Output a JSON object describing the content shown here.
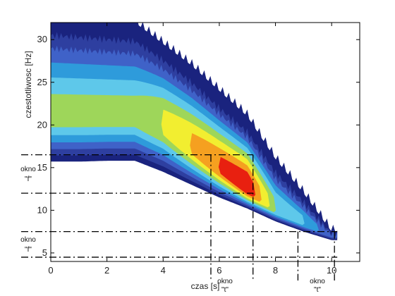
{
  "chart_data": {
    "type": "heatmap",
    "title": "",
    "xlabel": "czas [s]",
    "ylabel": "czestotliwosc [Hz]",
    "xlim": [
      0,
      11
    ],
    "ylim": [
      4,
      32
    ],
    "xticks": [
      0,
      2,
      4,
      6,
      8,
      10
    ],
    "yticks": [
      5,
      10,
      15,
      20,
      25,
      30
    ],
    "grid": false,
    "colorscale": [
      "#1a237e",
      "#2e3fa0",
      "#3f62c8",
      "#2e9bdb",
      "#5ec8ea",
      "#9ed65a",
      "#f2ee30",
      "#f5a020",
      "#e82010",
      "#b00000"
    ],
    "ridge": {
      "time_s": [
        0,
        1,
        2,
        3,
        4,
        5,
        6,
        7,
        8,
        9,
        10
      ],
      "peak_freq_hz": [
        21,
        21,
        21,
        21,
        20,
        17.5,
        15,
        12.5,
        10,
        8.5,
        7
      ],
      "intensity_level": [
        5,
        5,
        5,
        5,
        6,
        7,
        8,
        9,
        5,
        4,
        2
      ],
      "max_level_at": {
        "time_s": 6.6,
        "freq_hz": 13.5
      }
    },
    "upper_edge": {
      "time_s": [
        0,
        1,
        2,
        3,
        4,
        5,
        6,
        7,
        8,
        9,
        10
      ],
      "freq_hz": [
        32,
        32,
        32,
        32,
        29.5,
        27,
        24,
        21,
        16,
        12,
        7.5
      ]
    },
    "lower_edge": {
      "time_s": [
        0,
        1,
        2,
        3,
        4,
        5,
        6,
        7,
        8,
        9,
        10
      ],
      "freq_hz": [
        15.7,
        15.7,
        15.8,
        15.8,
        14.5,
        13,
        11.5,
        10.2,
        8.7,
        7.5,
        6.5
      ]
    },
    "windows": {
      "horizontal": [
        {
          "label": "okno\n\"f\"",
          "freq_from": 12,
          "freq_to": 16.5
        },
        {
          "label": "okno\n\"f\"",
          "freq_from": 4.5,
          "freq_to": 7.5
        }
      ],
      "vertical": [
        {
          "label": "okno\n\"t\"",
          "time_from": 5.7,
          "time_to": 7.2
        },
        {
          "label": "okno\n\"t\"",
          "time_from": 8.8,
          "time_to": 10.1
        }
      ]
    },
    "annotations": [
      "okno",
      "\"f\"",
      "okno",
      "\"f\"",
      "okno",
      "\"t\"",
      "okno",
      "\"t\""
    ]
  }
}
